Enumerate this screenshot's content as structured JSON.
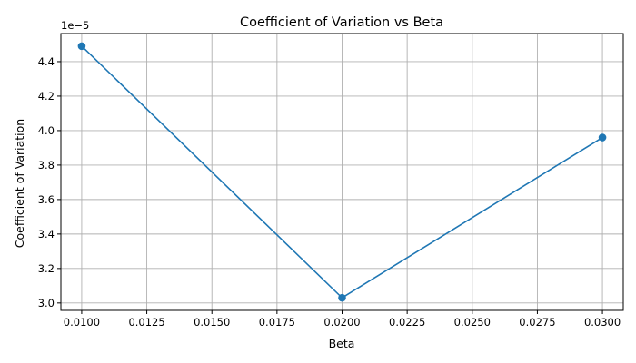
{
  "chart_data": {
    "type": "line",
    "title": "Coefficient of Variation vs Beta",
    "xlabel": "Beta",
    "ylabel": "Coefficient of Variation",
    "y_offset_label": "1e−5",
    "x": [
      0.01,
      0.02,
      0.03
    ],
    "series": [
      {
        "name": "Coefficient of Variation",
        "values": [
          4.49e-05,
          3.03e-05,
          3.96e-05
        ],
        "color": "#1f77b4",
        "marker": "o"
      }
    ],
    "xlim": [
      0.0092,
      0.0308
    ],
    "ylim": [
      2.957e-05,
      4.563e-05
    ],
    "xticks": [
      0.01,
      0.0125,
      0.015,
      0.0175,
      0.02,
      0.0225,
      0.025,
      0.0275,
      0.03
    ],
    "xtick_labels": [
      "0.0100",
      "0.0125",
      "0.0150",
      "0.0175",
      "0.0200",
      "0.0225",
      "0.0250",
      "0.0275",
      "0.0300"
    ],
    "yticks": [
      3e-05,
      3.2e-05,
      3.4e-05,
      3.6e-05,
      3.8e-05,
      4e-05,
      4.2e-05,
      4.4e-05
    ],
    "ytick_labels": [
      "3.0",
      "3.2",
      "3.4",
      "3.6",
      "3.8",
      "4.0",
      "4.2",
      "4.4"
    ],
    "grid": true
  }
}
